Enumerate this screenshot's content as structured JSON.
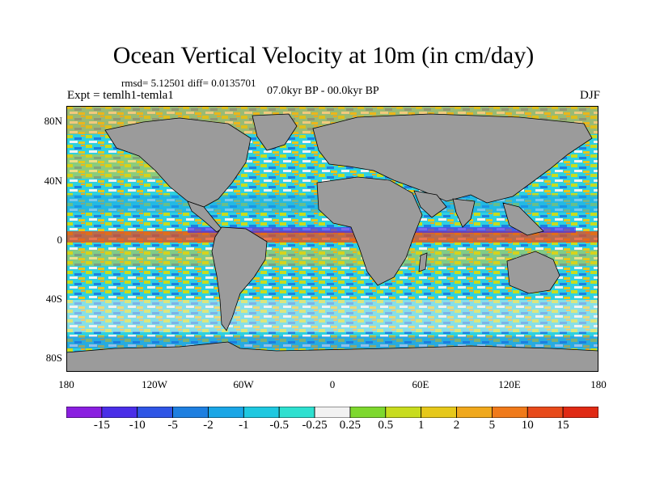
{
  "title": "Ocean Vertical Velocity at 10m (in cm/day)",
  "stats": "rmsd= 5.12501 diff= 0.0135701",
  "experiment": "Expt = temlh1-temla1",
  "period": "07.0kyr BP - 00.0kyr BP",
  "season": "DJF",
  "latitude_labels": [
    "80N",
    "40N",
    "0",
    "40S",
    "80S"
  ],
  "longitude_labels": [
    "180",
    "120W",
    "60W",
    "0",
    "60E",
    "120E",
    "180"
  ],
  "colorbar": {
    "labels": [
      "-15",
      "-10",
      "-5",
      "-2",
      "-1",
      "-0.5",
      "-0.25",
      "0.25",
      "0.5",
      "1",
      "2",
      "5",
      "10",
      "15"
    ],
    "colors": [
      "#8a1fe0",
      "#4a2ee8",
      "#2f55e6",
      "#1e7fe0",
      "#1aa6e6",
      "#1fc8e0",
      "#2ee0d0",
      "#f2f2f2",
      "#7ed82e",
      "#c8dc1e",
      "#e6c81a",
      "#f0a81c",
      "#f07a1a",
      "#e84a1a",
      "#e02a14"
    ]
  },
  "land_color": "#9b9b9b"
}
